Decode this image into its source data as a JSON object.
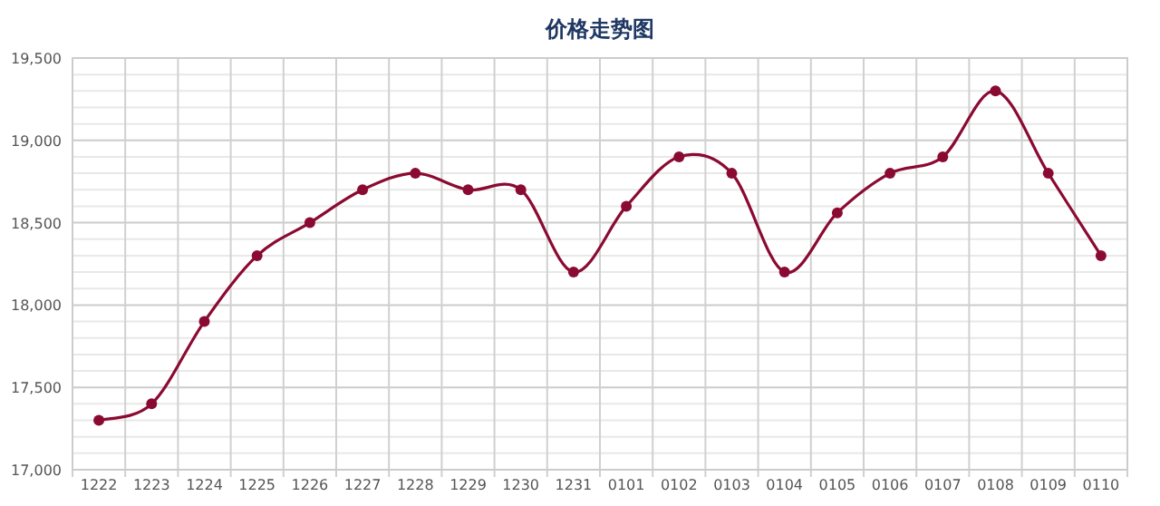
{
  "chart_data": {
    "type": "line",
    "title": "价格走势图",
    "categories": [
      "1222",
      "1223",
      "1224",
      "1225",
      "1226",
      "1227",
      "1228",
      "1229",
      "1230",
      "1231",
      "0101",
      "0102",
      "0103",
      "0104",
      "0105",
      "0106",
      "0107",
      "0108",
      "0109",
      "0110"
    ],
    "series": [
      {
        "color": "#8b0a32",
        "values": [
          17300,
          17400,
          17900,
          18300,
          18500,
          18700,
          18800,
          18700,
          18700,
          18200,
          18600,
          18900,
          18800,
          18200,
          18560,
          18800,
          18900,
          19300,
          18800,
          18300
        ]
      }
    ],
    "ylim": [
      17000,
      19500
    ],
    "yticks": [
      {
        "value": 17000,
        "label": "17,000"
      },
      {
        "value": 17100,
        "label": null
      },
      {
        "value": 17200,
        "label": null
      },
      {
        "value": 17300,
        "label": null
      },
      {
        "value": 17400,
        "label": null
      },
      {
        "value": 17500,
        "label": "17,500"
      },
      {
        "value": 17600,
        "label": null
      },
      {
        "value": 17700,
        "label": null
      },
      {
        "value": 17800,
        "label": null
      },
      {
        "value": 17900,
        "label": null
      },
      {
        "value": 18000,
        "label": "18,000"
      },
      {
        "value": 18100,
        "label": null
      },
      {
        "value": 18200,
        "label": null
      },
      {
        "value": 18300,
        "label": null
      },
      {
        "value": 18400,
        "label": null
      },
      {
        "value": 18500,
        "label": "18,500"
      },
      {
        "value": 18600,
        "label": null
      },
      {
        "value": 18700,
        "label": null
      },
      {
        "value": 18800,
        "label": null
      },
      {
        "value": 18900,
        "label": null
      },
      {
        "value": 19000,
        "label": "19,000"
      },
      {
        "value": 19100,
        "label": null
      },
      {
        "value": 19200,
        "label": null
      },
      {
        "value": 19300,
        "label": null
      },
      {
        "value": 19400,
        "label": null
      },
      {
        "value": 19500,
        "label": "19,500"
      }
    ],
    "grid": true,
    "marker": "circle",
    "line_style": "solid"
  }
}
